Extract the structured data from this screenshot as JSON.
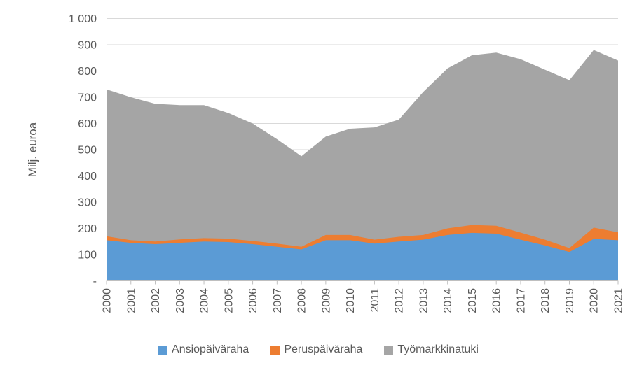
{
  "chart_data": {
    "type": "area",
    "stacked": true,
    "title": "",
    "ylabel": "Milj. euroa",
    "xlabel": "",
    "ylim": [
      0,
      1000
    ],
    "ytick_interval": 100,
    "ytick_labels": [
      "-",
      "100",
      "200",
      "300",
      "400",
      "500",
      "600",
      "700",
      "800",
      "900",
      "1 000"
    ],
    "grid": true,
    "legend_position": "bottom",
    "x": [
      "2000",
      "2001",
      "2002",
      "2003",
      "2004",
      "2005",
      "2006",
      "2007",
      "2008",
      "2009",
      "2010",
      "2011",
      "2012",
      "2013",
      "2014",
      "2015",
      "2016",
      "2017",
      "2018",
      "2019",
      "2020",
      "2021"
    ],
    "series": [
      {
        "name": "Ansiopäiväraha",
        "key": "ansiopaivaraha",
        "color": "#5B9BD5",
        "values": [
          155,
          145,
          140,
          145,
          150,
          148,
          140,
          130,
          120,
          155,
          155,
          142,
          150,
          157,
          175,
          183,
          180,
          157,
          135,
          110,
          160,
          155
        ]
      },
      {
        "name": "Peruspäiväraha",
        "key": "peruspaivaraha",
        "color": "#ED7D31",
        "values": [
          15,
          10,
          10,
          13,
          13,
          13,
          12,
          12,
          10,
          20,
          20,
          15,
          18,
          18,
          25,
          30,
          30,
          27,
          22,
          15,
          43,
          30
        ]
      },
      {
        "name": "Työmarkkinatuki",
        "key": "tyomarkkinatuki",
        "color": "#A5A5A5",
        "values": [
          560,
          545,
          525,
          512,
          507,
          479,
          448,
          398,
          345,
          375,
          405,
          428,
          447,
          545,
          610,
          647,
          660,
          661,
          648,
          640,
          677,
          655
        ]
      }
    ],
    "stacked_totals": [
      730,
      700,
      675,
      670,
      670,
      640,
      600,
      540,
      475,
      550,
      580,
      585,
      615,
      720,
      810,
      860,
      870,
      845,
      805,
      765,
      880,
      840
    ]
  },
  "chart_style": {
    "gridline_color": "#D9D9D9",
    "axis_color": "#BFBFBF",
    "tick_label_color": "#595959",
    "axis_title_color": "#595959",
    "background": "#FFFFFF"
  }
}
